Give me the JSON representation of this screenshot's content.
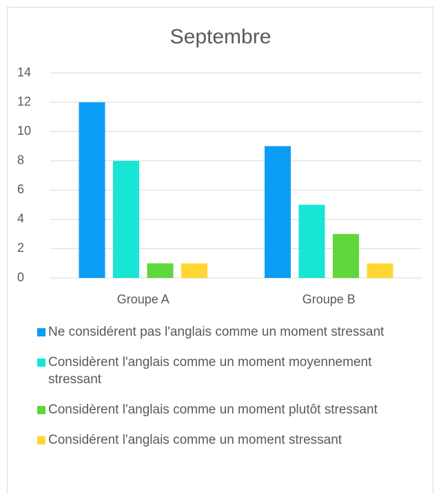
{
  "chart_data": {
    "type": "bar",
    "title": "Septembre",
    "categories": [
      "Groupe A",
      "Groupe B"
    ],
    "series": [
      {
        "name": "Ne considérent pas l'anglais comme un moment stressant",
        "color": "#0b9cf5",
        "values": [
          12,
          9
        ]
      },
      {
        "name": "Considèrent l'anglais comme un moment moyennement stressant",
        "color": "#17e6d4",
        "values": [
          8,
          5
        ]
      },
      {
        "name": "Considèrent l'anglais comme un moment plutôt stressant",
        "color": "#5fd63c",
        "values": [
          1,
          3
        ]
      },
      {
        "name": "Considérent l'anglais comme un moment stressant",
        "color": "#ffd633",
        "values": [
          1,
          1
        ]
      }
    ],
    "ylim": [
      0,
      14
    ],
    "yticks": [
      0,
      2,
      4,
      6,
      8,
      10,
      12,
      14
    ],
    "grid": true,
    "legend": "bottom"
  }
}
